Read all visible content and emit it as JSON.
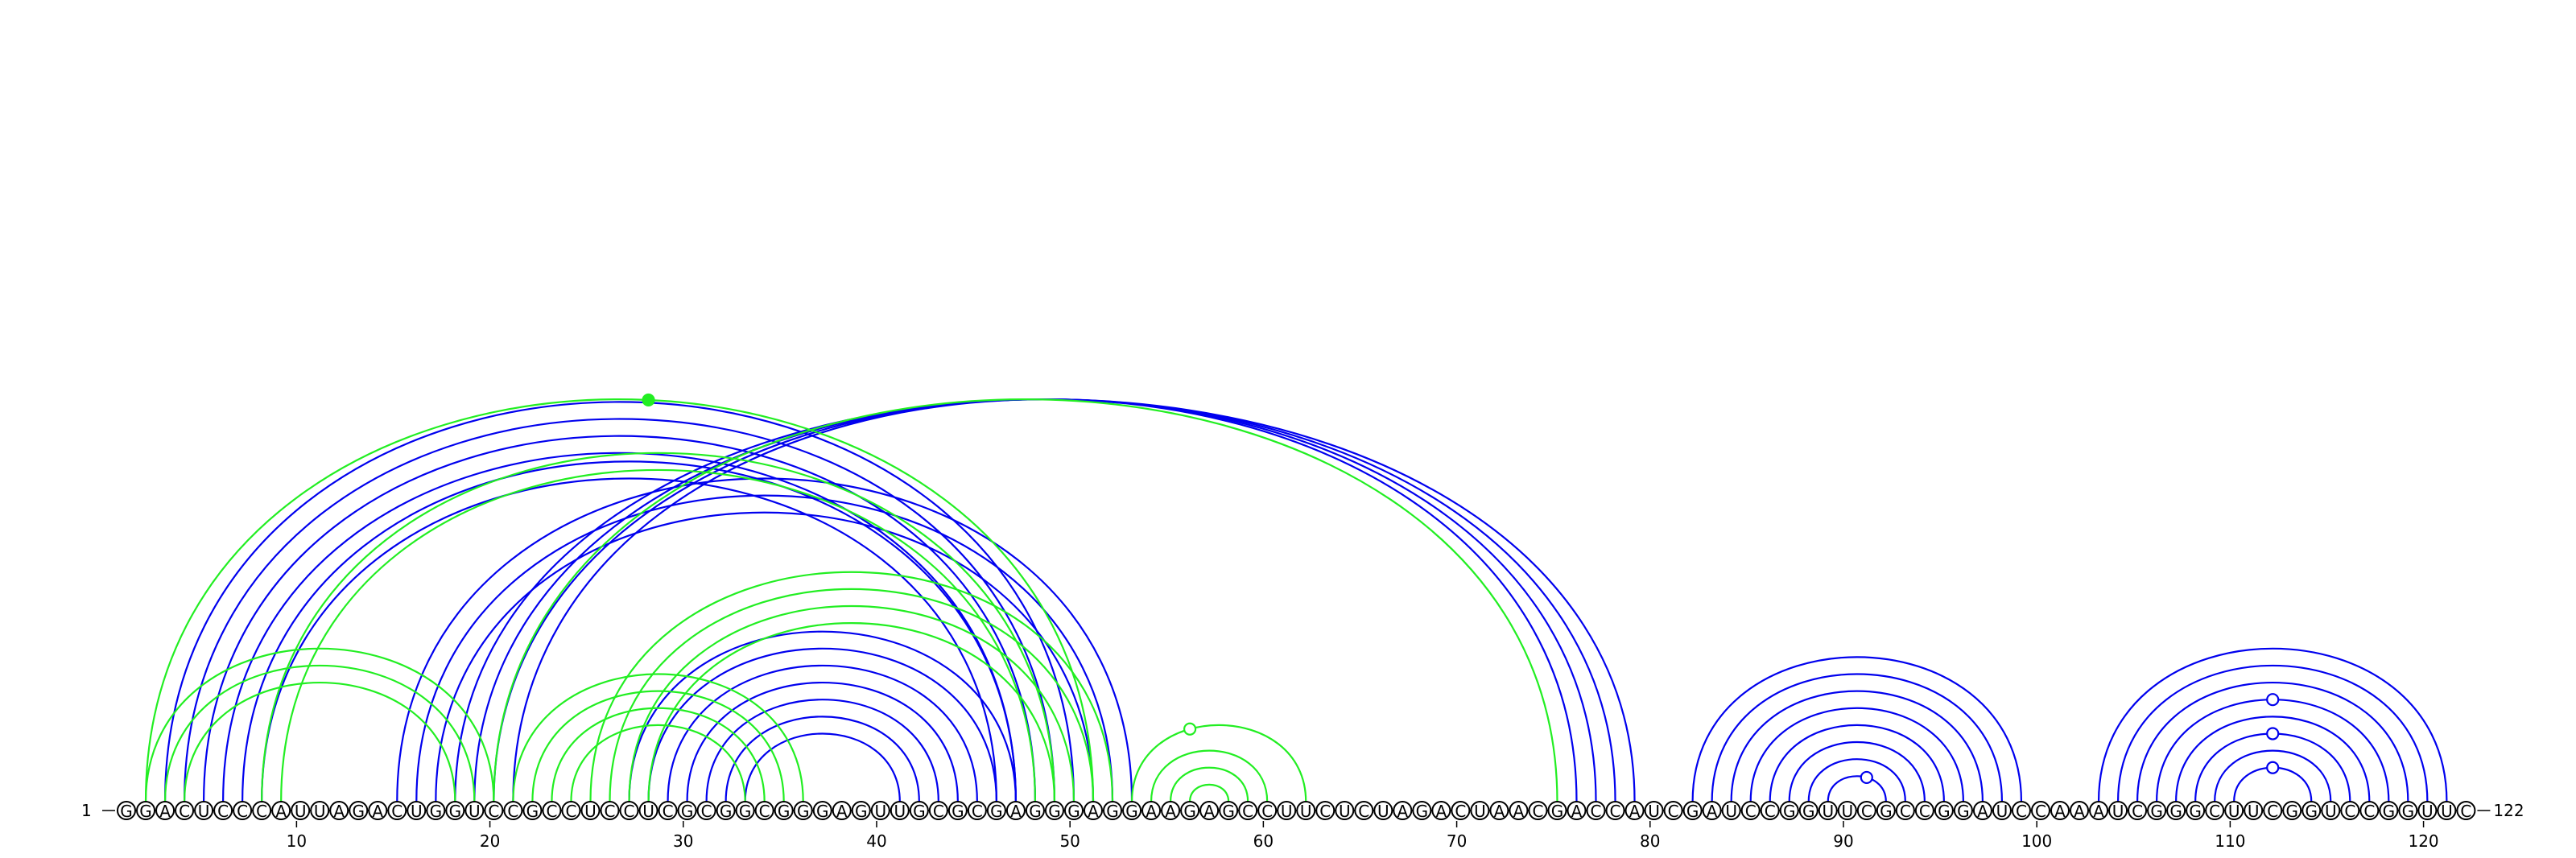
{
  "sequence": "GGACUCCCAUUAGACUGGUCCGCCUCCUCGCGGCGGGAGUUGCGCGAGGGAGGAAGAGCCUUCUCUAGACUAACGACCAUCGAUCCGGUUCGCCGGAUCCAAAUCGGGCUUCGGUCCGGUUC",
  "start_label": "1",
  "end_label": "122",
  "tick_labels": [
    "10",
    "20",
    "30",
    "40",
    "50",
    "60",
    "70",
    "80",
    "90",
    "100",
    "110",
    "120"
  ],
  "colors": {
    "structure_a": "#0000ee",
    "structure_b": "#22ee22",
    "backbone": "#000000"
  },
  "arc_groups": [
    {
      "color": "structure_a",
      "pairs": [
        [
          82,
          99
        ],
        [
          83,
          98
        ],
        [
          84,
          97
        ],
        [
          85,
          96
        ],
        [
          86,
          95
        ],
        [
          87,
          94
        ],
        [
          88,
          93
        ],
        [
          89,
          92
        ]
      ]
    },
    {
      "color": "structure_a",
      "pairs": [
        [
          103,
          121
        ],
        [
          104,
          120
        ],
        [
          105,
          119
        ],
        [
          106,
          118
        ],
        [
          107,
          117
        ],
        [
          108,
          116
        ],
        [
          109,
          115
        ],
        [
          110,
          114
        ]
      ]
    },
    {
      "color": "structure_a",
      "pairs": [
        [
          18,
          79
        ],
        [
          19,
          78
        ],
        [
          20,
          77
        ],
        [
          21,
          76
        ]
      ]
    },
    {
      "color": "structure_a",
      "pairs": [
        [
          3,
          50
        ],
        [
          4,
          49
        ],
        [
          5,
          48
        ],
        [
          6,
          47
        ],
        [
          7,
          47
        ],
        [
          8,
          46
        ]
      ]
    },
    {
      "color": "structure_a",
      "pairs": [
        [
          15,
          53
        ],
        [
          16,
          52
        ],
        [
          17,
          51
        ]
      ]
    },
    {
      "color": "structure_a",
      "pairs": [
        [
          27,
          47
        ],
        [
          28,
          46
        ],
        [
          29,
          45
        ],
        [
          30,
          44
        ],
        [
          31,
          43
        ],
        [
          32,
          42
        ],
        [
          33,
          41
        ]
      ]
    },
    {
      "color": "structure_b",
      "pairs": [
        [
          2,
          20
        ],
        [
          3,
          19
        ],
        [
          4,
          18
        ]
      ]
    },
    {
      "color": "structure_b",
      "pairs": [
        [
          2,
          51
        ],
        [
          8,
          49
        ],
        [
          9,
          48
        ]
      ]
    },
    {
      "color": "structure_b",
      "pairs": [
        [
          20,
          75
        ]
      ]
    },
    {
      "color": "structure_b",
      "pairs": [
        [
          21,
          36
        ],
        [
          22,
          35
        ],
        [
          23,
          34
        ],
        [
          24,
          33
        ]
      ]
    },
    {
      "color": "structure_b",
      "pairs": [
        [
          25,
          52
        ],
        [
          26,
          51
        ],
        [
          27,
          50
        ],
        [
          28,
          49
        ]
      ]
    },
    {
      "color": "structure_b",
      "pairs": [
        [
          53,
          62
        ],
        [
          54,
          60
        ],
        [
          55,
          59
        ],
        [
          56,
          58
        ]
      ]
    }
  ],
  "markers": [
    {
      "nt": 28,
      "color": "structure_b",
      "filled": true,
      "arc": [
        2,
        51
      ]
    },
    {
      "nt": 56,
      "color": "structure_b",
      "filled": false,
      "arc": [
        53,
        62
      ]
    },
    {
      "nt": 91,
      "color": "structure_a",
      "filled": false,
      "arc": [
        89,
        92
      ]
    },
    {
      "nt": 112,
      "color": "structure_a",
      "filled": false,
      "arc": [
        110,
        114
      ]
    },
    {
      "nt": 112,
      "color": "structure_a",
      "filled": false,
      "arc": [
        108,
        116
      ]
    },
    {
      "nt": 112,
      "color": "structure_a",
      "filled": false,
      "arc": [
        106,
        118
      ]
    }
  ]
}
